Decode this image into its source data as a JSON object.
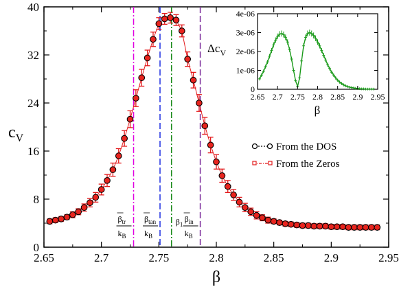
{
  "chart_data": [
    {
      "type": "scatter",
      "xlabel": "β",
      "ylabel_main": "c",
      "ylabel_sub": "V",
      "xlim": [
        2.65,
        2.95
      ],
      "ylim": [
        0,
        40
      ],
      "xticks": [
        "2.65",
        "2.7",
        "2.75",
        "2.8",
        "2.85",
        "2.9",
        "2.95"
      ],
      "yticks": [
        "0",
        "8",
        "16",
        "24",
        "32",
        "40"
      ],
      "grid": false,
      "legend_position": "right",
      "series": [
        {
          "name": "From the DOS",
          "marker": "open-circle",
          "color": "#000000",
          "x": [
            2.655,
            2.66,
            2.665,
            2.67,
            2.675,
            2.68,
            2.685,
            2.69,
            2.695,
            2.7,
            2.705,
            2.71,
            2.715,
            2.72,
            2.725,
            2.73,
            2.735,
            2.74,
            2.745,
            2.75,
            2.755,
            2.76,
            2.765,
            2.77,
            2.775,
            2.78,
            2.785,
            2.79,
            2.795,
            2.8,
            2.805,
            2.81,
            2.815,
            2.82,
            2.825,
            2.83,
            2.835,
            2.84,
            2.845,
            2.85,
            2.855,
            2.86,
            2.865,
            2.87,
            2.875,
            2.88,
            2.885,
            2.89,
            2.895,
            2.9,
            2.905,
            2.91,
            2.915,
            2.92,
            2.925,
            2.93,
            2.935,
            2.94
          ],
          "y": [
            4.3,
            4.5,
            4.7,
            5.0,
            5.4,
            5.9,
            6.6,
            7.4,
            8.3,
            9.6,
            11.1,
            12.9,
            15.2,
            18.1,
            21.3,
            24.8,
            28.2,
            31.5,
            34.6,
            37.2,
            38.0,
            38.2,
            37.8,
            36.0,
            31.3,
            27.8,
            24.0,
            20.2,
            17.0,
            14.2,
            11.9,
            10.1,
            8.7,
            7.5,
            6.6,
            5.9,
            5.3,
            4.9,
            4.5,
            4.3,
            4.1,
            3.9,
            3.8,
            3.7,
            3.6,
            3.6,
            3.5,
            3.5,
            3.5,
            3.4,
            3.4,
            3.4,
            3.3,
            3.3,
            3.3,
            3.3,
            3.3,
            3.3
          ]
        },
        {
          "name": "From the Zeros",
          "marker": "filled-circle-errorbar",
          "color": "#e31a1c",
          "x": [
            2.655,
            2.66,
            2.665,
            2.67,
            2.675,
            2.68,
            2.685,
            2.69,
            2.695,
            2.7,
            2.705,
            2.71,
            2.715,
            2.72,
            2.725,
            2.73,
            2.735,
            2.74,
            2.745,
            2.75,
            2.755,
            2.76,
            2.765,
            2.77,
            2.775,
            2.78,
            2.785,
            2.79,
            2.795,
            2.8,
            2.805,
            2.81,
            2.815,
            2.82,
            2.825,
            2.83,
            2.835,
            2.84,
            2.845,
            2.85,
            2.855,
            2.86,
            2.865,
            2.87,
            2.875,
            2.88,
            2.885,
            2.89,
            2.895,
            2.9,
            2.905,
            2.91,
            2.915,
            2.92,
            2.925,
            2.93,
            2.935,
            2.94
          ],
          "y": [
            4.3,
            4.5,
            4.7,
            5.0,
            5.4,
            5.9,
            6.6,
            7.4,
            8.3,
            9.6,
            11.1,
            12.9,
            15.2,
            18.1,
            21.3,
            24.8,
            28.2,
            31.5,
            34.6,
            37.2,
            38.0,
            38.2,
            37.8,
            36.0,
            31.3,
            27.8,
            24.0,
            20.2,
            17.0,
            14.2,
            11.9,
            10.1,
            8.7,
            7.5,
            6.6,
            5.9,
            5.3,
            4.9,
            4.5,
            4.3,
            4.1,
            3.9,
            3.8,
            3.7,
            3.6,
            3.6,
            3.5,
            3.5,
            3.5,
            3.4,
            3.4,
            3.4,
            3.3,
            3.3,
            3.3,
            3.3,
            3.3,
            3.3
          ],
          "error": [
            0.4,
            0.4,
            0.4,
            0.4,
            0.5,
            0.5,
            0.6,
            0.7,
            0.8,
            0.9,
            1.0,
            1.1,
            1.2,
            1.3,
            1.4,
            1.4,
            1.4,
            1.3,
            1.2,
            1.0,
            0.9,
            0.9,
            0.9,
            1.0,
            1.2,
            1.3,
            1.4,
            1.4,
            1.3,
            1.2,
            1.1,
            1.0,
            0.9,
            0.8,
            0.7,
            0.6,
            0.6,
            0.5,
            0.5,
            0.4,
            0.4,
            0.4,
            0.4,
            0.4,
            0.4,
            0.4,
            0.4,
            0.4,
            0.4,
            0.4,
            0.4,
            0.4,
            0.4,
            0.4,
            0.4,
            0.4,
            0.4,
            0.4
          ]
        }
      ],
      "vertical_lines": [
        {
          "x": 2.728,
          "color": "#e000e0",
          "style": "dash-dot",
          "label_top": "β",
          "label_sub": "tr",
          "label_den": "k",
          "label_den_sub": "B"
        },
        {
          "x": 2.751,
          "color": "#1f2fe0",
          "style": "dash",
          "label_top": "β",
          "label_sub": "tan",
          "label_den": "k",
          "label_den_sub": "B"
        },
        {
          "x": 2.761,
          "color": "#1a8a1a",
          "style": "dash-dot",
          "label_top": "β",
          "label_sub": "1",
          "label_den": "",
          "label_den_sub": ""
        },
        {
          "x": 2.786,
          "color": "#7a2a9a",
          "style": "dash",
          "label_top": "β",
          "label_sub": "in",
          "label_den": "k",
          "label_den_sub": "B"
        }
      ]
    },
    {
      "type": "line",
      "xlabel": "β",
      "ylabel_main": "Δc",
      "ylabel_sub": "V",
      "xlim": [
        2.65,
        2.95
      ],
      "ylim": [
        0,
        4e-06
      ],
      "xticks": [
        "2.65",
        "2.7",
        "2.75",
        "2.8",
        "2.85",
        "2.9",
        "2.95"
      ],
      "yticks": [
        "0",
        "1e-06",
        "2e-06",
        "3e-06",
        "4e-06"
      ],
      "color": "#1a9a1a",
      "x": [
        2.655,
        2.66,
        2.665,
        2.67,
        2.675,
        2.68,
        2.685,
        2.69,
        2.695,
        2.7,
        2.705,
        2.71,
        2.715,
        2.72,
        2.725,
        2.73,
        2.735,
        2.74,
        2.745,
        2.75,
        2.755,
        2.76,
        2.765,
        2.77,
        2.775,
        2.78,
        2.785,
        2.79,
        2.795,
        2.8,
        2.805,
        2.81,
        2.815,
        2.82,
        2.825,
        2.83,
        2.835,
        2.84,
        2.845,
        2.85,
        2.855,
        2.86,
        2.865,
        2.87,
        2.875,
        2.88,
        2.885,
        2.89,
        2.895,
        2.9,
        2.905,
        2.91,
        2.915,
        2.92,
        2.925,
        2.93,
        2.935,
        2.94
      ],
      "y": [
        5.5e-07,
        7.5e-07,
        9.5e-07,
        1.2e-06,
        1.45e-06,
        1.75e-06,
        2.05e-06,
        2.35e-06,
        2.6e-06,
        2.8e-06,
        2.92e-06,
        2.95e-06,
        2.9e-06,
        2.75e-06,
        2.5e-06,
        2.1e-06,
        1.6e-06,
        1e-06,
        4.5e-07,
        1.5e-07,
        6e-07,
        1.5e-06,
        2.3e-06,
        2.75e-06,
        2.95e-06,
        3e-06,
        2.95e-06,
        2.85e-06,
        2.7e-06,
        2.5e-06,
        2.3e-06,
        2.05e-06,
        1.8e-06,
        1.55e-06,
        1.3e-06,
        1.1e-06,
        9e-07,
        7.5e-07,
        6e-07,
        4.8e-07,
        3.8e-07,
        3e-07,
        2.3e-07,
        1.8e-07,
        1.4e-07,
        1.1e-07,
        9e-08,
        7e-08,
        5e-08,
        4e-08,
        3e-08,
        2e-08,
        2e-08,
        1e-08,
        1e-08,
        1e-08,
        1e-08,
        1e-08
      ]
    }
  ]
}
